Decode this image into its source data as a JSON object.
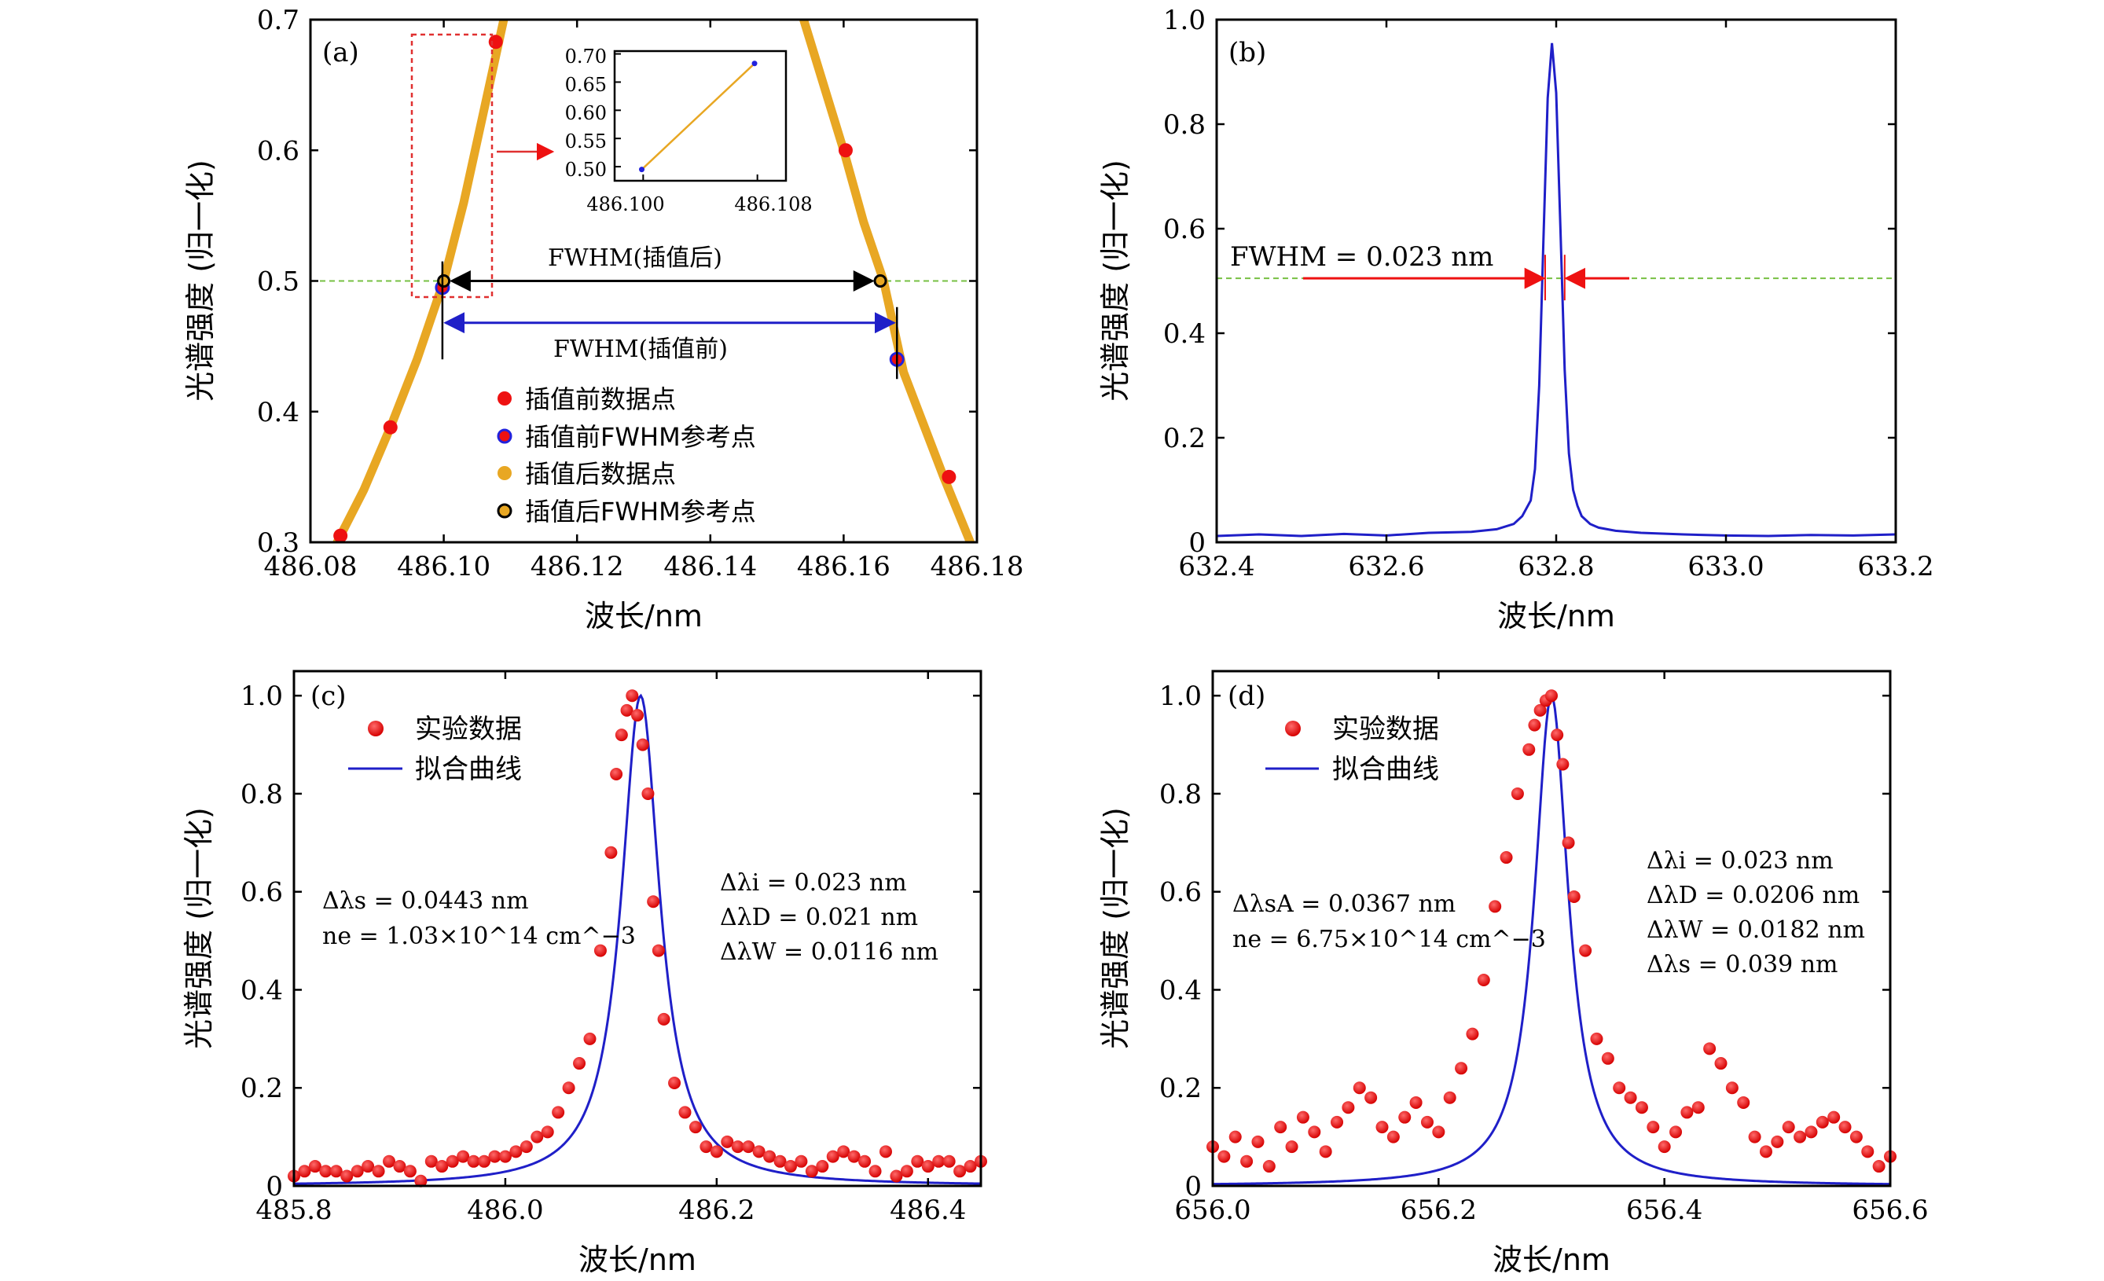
{
  "panels": {
    "a": {
      "label": "(a)",
      "ylabel": "光谱强度 (归一化)",
      "xlabel": "波长/nm",
      "fwhm_after_label": "FWHM(插值后)",
      "fwhm_before_label": "FWHM(插值前)",
      "legend": [
        "插值前数据点",
        "插值前FWHM参考点",
        "插值后数据点",
        "插值后FWHM参考点"
      ],
      "inset": {
        "xticks": [
          "486.100",
          "486.108"
        ],
        "yticks": [
          "0.50",
          "0.55",
          "0.60",
          "0.65",
          "0.70"
        ]
      }
    },
    "b": {
      "label": "(b)",
      "ylabel": "光谱强度 (归一化)",
      "xlabel": "波长/nm",
      "annotation": "FWHM = 0.023 nm"
    },
    "c": {
      "label": "(c)",
      "ylabel": "光谱强度 (归一化)",
      "xlabel": "波长/nm",
      "legend": [
        "实验数据",
        "拟合曲线"
      ],
      "left_text": [
        "Δλs = 0.0443 nm",
        "ne = 1.03×10^14 cm^−3"
      ],
      "right_text": [
        "Δλi = 0.023 nm",
        "ΔλD = 0.021 nm",
        "ΔλW = 0.0116 nm"
      ]
    },
    "d": {
      "label": "(d)",
      "ylabel": "光谱强度 (归一化)",
      "xlabel": "波长/nm",
      "legend": [
        "实验数据",
        "拟合曲线"
      ],
      "left_text": [
        "ΔλsA = 0.0367 nm",
        "ne = 6.75×10^14 cm^−3"
      ],
      "right_text": [
        "Δλi = 0.023 nm",
        "ΔλD = 0.0206 nm",
        "ΔλW = 0.0182 nm",
        "Δλs = 0.039 nm"
      ]
    }
  },
  "colors": {
    "axis": "#000000",
    "interp_curve": "#E8A723",
    "raw_point": "#EE1111",
    "fwhm_raw_edge": "#2222DD",
    "blue_line": "#1F1FC8",
    "green_dash": "#77C043",
    "red_arrow": "#EE1111",
    "box": "#E03030"
  },
  "chart_data": [
    {
      "panel": "a",
      "type": "scatter",
      "xlim": [
        486.08,
        486.18
      ],
      "ylim": [
        0.3,
        0.7
      ],
      "xticks": [
        486.08,
        486.1,
        486.12,
        486.14,
        486.16,
        486.18
      ],
      "yticks": [
        0.3,
        0.4,
        0.5,
        0.6,
        0.7
      ],
      "series": [
        {
          "name": "插值前数据点",
          "x": [
            486.0845,
            486.092,
            486.0998,
            486.1078,
            486.1603,
            486.168,
            486.1758
          ],
          "y": [
            0.305,
            0.388,
            0.495,
            0.683,
            0.6,
            0.44,
            0.35
          ]
        },
        {
          "name": "插值前FWHM参考点",
          "x": [
            486.0998,
            486.168
          ],
          "y": [
            0.495,
            0.44
          ]
        },
        {
          "name": "插值后数据点",
          "x": [
            486.084,
            486.088,
            486.092,
            486.096,
            486.1,
            486.103,
            486.106,
            486.109,
            486.154,
            486.157,
            486.16,
            486.163,
            486.166,
            486.169,
            486.172,
            486.175,
            486.179
          ],
          "y": [
            0.3,
            0.34,
            0.388,
            0.44,
            0.5,
            0.56,
            0.63,
            0.7,
            0.7,
            0.65,
            0.6,
            0.545,
            0.5,
            0.43,
            0.39,
            0.35,
            0.3
          ]
        },
        {
          "name": "插值后FWHM参考点",
          "x": [
            486.1,
            486.1655
          ],
          "y": [
            0.5,
            0.5
          ]
        }
      ],
      "inset": {
        "xlim": [
          486.098,
          486.11
        ],
        "ylim": [
          0.475,
          0.705
        ],
        "x": [
          486.0999,
          486.1078
        ],
        "y": [
          0.495,
          0.683
        ]
      }
    },
    {
      "panel": "b",
      "type": "line",
      "xlim": [
        632.4,
        633.2
      ],
      "ylim": [
        0,
        1.0
      ],
      "xticks": [
        632.4,
        632.6,
        632.8,
        633.0,
        633.2
      ],
      "yticks": [
        0,
        0.2,
        0.4,
        0.6,
        0.8,
        1.0
      ],
      "half_max": 0.505,
      "series": [
        {
          "x": [
            632.4,
            632.45,
            632.5,
            632.55,
            632.6,
            632.65,
            632.7,
            632.73,
            632.75,
            632.76,
            632.77,
            632.775,
            632.78,
            632.785,
            632.79,
            632.795,
            632.8,
            632.805,
            632.81,
            632.815,
            632.82,
            632.825,
            632.83,
            632.84,
            632.85,
            632.87,
            632.9,
            632.95,
            633.0,
            633.05,
            633.1,
            633.15,
            633.2
          ],
          "y": [
            0.012,
            0.015,
            0.012,
            0.016,
            0.013,
            0.018,
            0.02,
            0.025,
            0.035,
            0.05,
            0.08,
            0.14,
            0.3,
            0.58,
            0.85,
            0.955,
            0.86,
            0.6,
            0.33,
            0.17,
            0.1,
            0.07,
            0.05,
            0.035,
            0.028,
            0.022,
            0.018,
            0.015,
            0.013,
            0.012,
            0.014,
            0.013,
            0.015
          ]
        }
      ]
    },
    {
      "panel": "c",
      "type": "scatter",
      "xlim": [
        485.8,
        486.45
      ],
      "ylim": [
        0,
        1.05
      ],
      "xticks": [
        485.8,
        486.0,
        486.2,
        486.4
      ],
      "yticks": [
        0,
        0.2,
        0.4,
        0.6,
        0.8,
        1.0
      ],
      "fit": {
        "center": 486.128,
        "fwhm": 0.0443
      },
      "series": [
        {
          "name": "实验数据",
          "x": [
            485.8,
            485.81,
            485.82,
            485.83,
            485.84,
            485.85,
            485.86,
            485.87,
            485.88,
            485.89,
            485.9,
            485.91,
            485.92,
            485.93,
            485.94,
            485.95,
            485.96,
            485.97,
            485.98,
            485.99,
            486.0,
            486.01,
            486.02,
            486.03,
            486.04,
            486.05,
            486.06,
            486.07,
            486.08,
            486.09,
            486.1,
            486.105,
            486.11,
            486.115,
            486.12,
            486.125,
            486.13,
            486.135,
            486.14,
            486.145,
            486.15,
            486.16,
            486.17,
            486.18,
            486.19,
            486.2,
            486.21,
            486.22,
            486.23,
            486.24,
            486.25,
            486.26,
            486.27,
            486.28,
            486.29,
            486.3,
            486.31,
            486.32,
            486.33,
            486.34,
            486.35,
            486.36,
            486.37,
            486.38,
            486.39,
            486.4,
            486.41,
            486.42,
            486.43,
            486.44,
            486.45
          ],
          "y": [
            0.02,
            0.03,
            0.04,
            0.03,
            0.03,
            0.02,
            0.03,
            0.04,
            0.03,
            0.05,
            0.04,
            0.03,
            0.01,
            0.05,
            0.04,
            0.05,
            0.06,
            0.05,
            0.05,
            0.06,
            0.06,
            0.07,
            0.08,
            0.1,
            0.11,
            0.15,
            0.2,
            0.25,
            0.3,
            0.48,
            0.68,
            0.84,
            0.92,
            0.97,
            1.0,
            0.96,
            0.9,
            0.8,
            0.58,
            0.48,
            0.34,
            0.21,
            0.15,
            0.12,
            0.08,
            0.07,
            0.09,
            0.08,
            0.08,
            0.07,
            0.06,
            0.05,
            0.04,
            0.05,
            0.03,
            0.04,
            0.06,
            0.07,
            0.06,
            0.05,
            0.03,
            0.07,
            0.02,
            0.03,
            0.05,
            0.04,
            0.05,
            0.05,
            0.03,
            0.04,
            0.05
          ]
        }
      ]
    },
    {
      "panel": "d",
      "type": "scatter",
      "xlim": [
        656.0,
        656.6
      ],
      "ylim": [
        0,
        1.05
      ],
      "xticks": [
        656.0,
        656.2,
        656.4,
        656.6
      ],
      "yticks": [
        0,
        0.2,
        0.4,
        0.6,
        0.8,
        1.0
      ],
      "fit": {
        "center": 656.3,
        "fwhm": 0.0367
      },
      "series": [
        {
          "name": "实验数据",
          "x": [
            656.0,
            656.01,
            656.02,
            656.03,
            656.04,
            656.05,
            656.06,
            656.07,
            656.08,
            656.09,
            656.1,
            656.11,
            656.12,
            656.13,
            656.14,
            656.15,
            656.16,
            656.17,
            656.18,
            656.19,
            656.2,
            656.21,
            656.22,
            656.23,
            656.24,
            656.25,
            656.26,
            656.27,
            656.28,
            656.285,
            656.29,
            656.295,
            656.3,
            656.305,
            656.31,
            656.315,
            656.32,
            656.33,
            656.34,
            656.35,
            656.36,
            656.37,
            656.38,
            656.39,
            656.4,
            656.41,
            656.42,
            656.43,
            656.44,
            656.45,
            656.46,
            656.47,
            656.48,
            656.49,
            656.5,
            656.51,
            656.52,
            656.53,
            656.54,
            656.55,
            656.56,
            656.57,
            656.58,
            656.59,
            656.6
          ],
          "y": [
            0.08,
            0.06,
            0.1,
            0.05,
            0.09,
            0.04,
            0.12,
            0.08,
            0.14,
            0.11,
            0.07,
            0.13,
            0.16,
            0.2,
            0.18,
            0.12,
            0.1,
            0.14,
            0.17,
            0.13,
            0.11,
            0.18,
            0.24,
            0.31,
            0.42,
            0.57,
            0.67,
            0.8,
            0.89,
            0.94,
            0.97,
            0.99,
            1.0,
            0.92,
            0.86,
            0.7,
            0.59,
            0.48,
            0.3,
            0.26,
            0.2,
            0.18,
            0.16,
            0.12,
            0.08,
            0.11,
            0.15,
            0.16,
            0.28,
            0.25,
            0.2,
            0.17,
            0.1,
            0.07,
            0.09,
            0.12,
            0.1,
            0.11,
            0.13,
            0.14,
            0.12,
            0.1,
            0.07,
            0.04,
            0.06
          ]
        }
      ]
    }
  ]
}
